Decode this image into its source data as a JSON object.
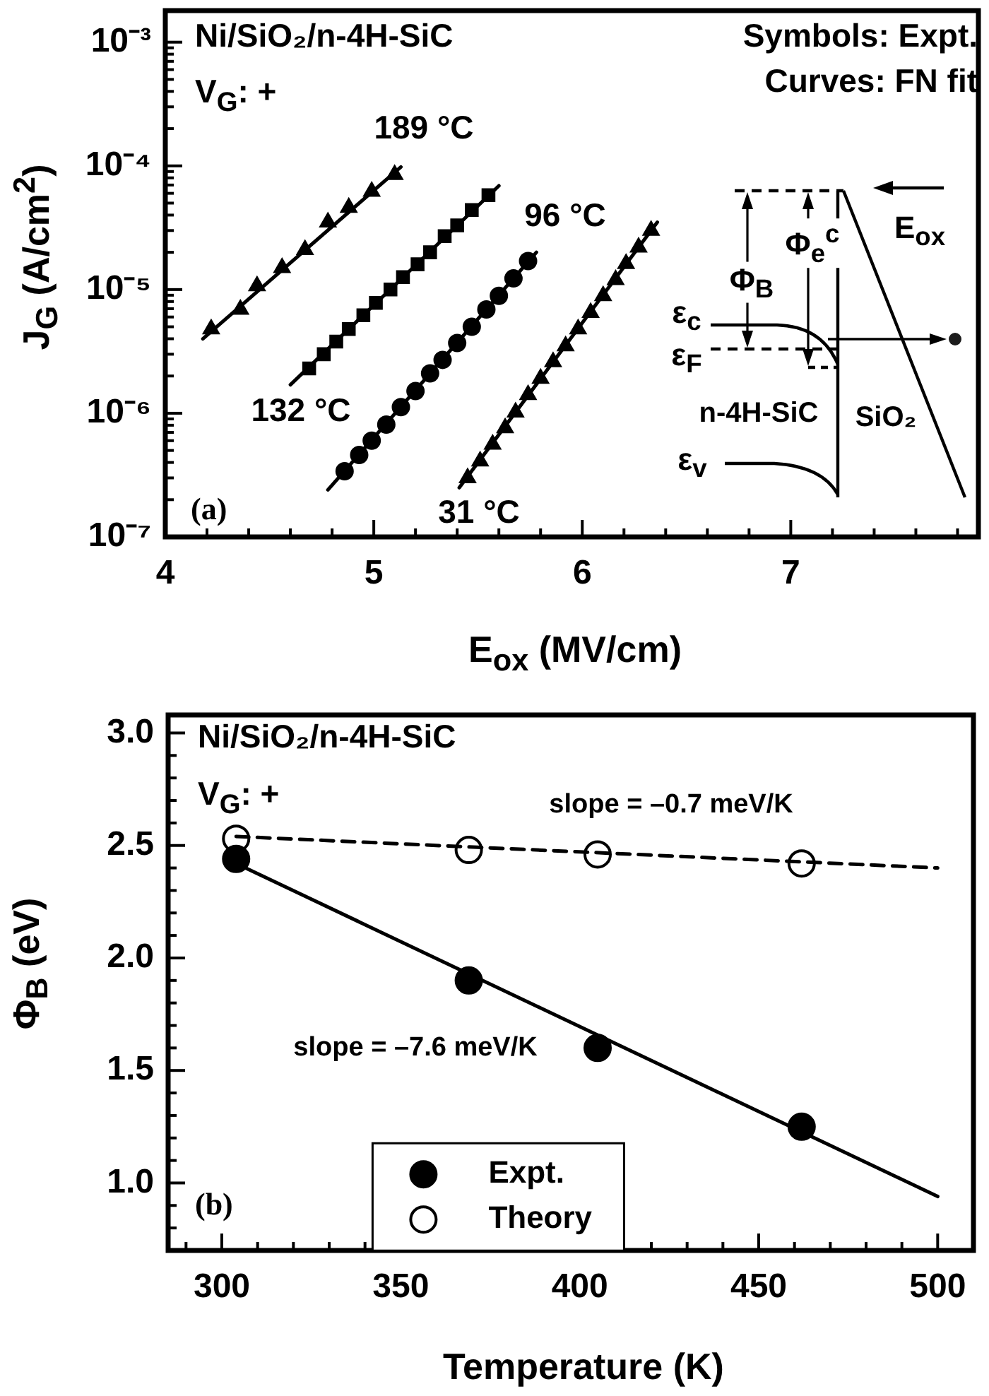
{
  "chart_data": [
    {
      "type": "scatter",
      "xlabel": "E$_{ox}$  (MV/cm)",
      "ylabel": "J$_{G}$ (A/cm$^{2}$)",
      "log": "y",
      "grid": false,
      "legend": false,
      "xlim": [
        4,
        7.9
      ],
      "xticks": [
        4,
        {
          "value": 4.2,
          "label": null
        },
        {
          "value": 4.4,
          "label": null
        },
        {
          "value": 4.6,
          "label": null
        },
        {
          "value": 4.8,
          "label": null
        },
        5,
        {
          "value": 5.2,
          "label": null
        },
        {
          "value": 5.4,
          "label": null
        },
        {
          "value": 5.6,
          "label": null
        },
        {
          "value": 5.8,
          "label": null
        },
        6,
        {
          "value": 6.2,
          "label": null
        },
        {
          "value": 6.4,
          "label": null
        },
        {
          "value": 6.6,
          "label": null
        },
        {
          "value": 6.8,
          "label": null
        },
        7,
        {
          "value": 7.2,
          "label": null
        },
        {
          "value": 7.4,
          "label": null
        },
        {
          "value": 7.6,
          "label": null
        },
        {
          "value": 7.8,
          "label": null
        }
      ],
      "ylim": [
        1e-07,
        0.0018
      ],
      "yticks": [
        {
          "value": 1e-07,
          "label": "10⁻⁷"
        },
        {
          "value": 2e-07,
          "label": null
        },
        {
          "value": 3e-07,
          "label": null
        },
        {
          "value": 4e-07,
          "label": null
        },
        {
          "value": 5e-07,
          "label": null
        },
        {
          "value": 6e-07,
          "label": null
        },
        {
          "value": 7e-07,
          "label": null
        },
        {
          "value": 8e-07,
          "label": null
        },
        {
          "value": 9e-07,
          "label": null
        },
        {
          "value": 1e-06,
          "label": "10⁻⁶"
        },
        {
          "value": 2e-06,
          "label": null
        },
        {
          "value": 3e-06,
          "label": null
        },
        {
          "value": 4e-06,
          "label": null
        },
        {
          "value": 5e-06,
          "label": null
        },
        {
          "value": 6e-06,
          "label": null
        },
        {
          "value": 7e-06,
          "label": null
        },
        {
          "value": 8e-06,
          "label": null
        },
        {
          "value": 9e-06,
          "label": null
        },
        {
          "value": 1e-05,
          "label": "10⁻⁵"
        },
        {
          "value": 2e-05,
          "label": null
        },
        {
          "value": 3e-05,
          "label": null
        },
        {
          "value": 4e-05,
          "label": null
        },
        {
          "value": 5e-05,
          "label": null
        },
        {
          "value": 6e-05,
          "label": null
        },
        {
          "value": 7e-05,
          "label": null
        },
        {
          "value": 8e-05,
          "label": null
        },
        {
          "value": 9e-05,
          "label": null
        },
        {
          "value": 0.0001,
          "label": "10⁻⁴"
        },
        {
          "value": 0.0002,
          "label": null
        },
        {
          "value": 0.0003,
          "label": null
        },
        {
          "value": 0.0004,
          "label": null
        },
        {
          "value": 0.0005,
          "label": null
        },
        {
          "value": 0.0006,
          "label": null
        },
        {
          "value": 0.0007,
          "label": null
        },
        {
          "value": 0.0008,
          "label": null
        },
        {
          "value": 0.0009,
          "label": null
        },
        {
          "value": 0.001,
          "label": "10⁻³"
        }
      ],
      "series": [
        {
          "marker": "triangle",
          "color": "#000000",
          "x": [
            4.22,
            4.36,
            4.44,
            4.56,
            4.67,
            4.78,
            4.88,
            4.99,
            5.1
          ],
          "values": [
            4.8e-06,
            6.9e-06,
            1.07e-05,
            1.5e-05,
            2.1e-05,
            3.5e-05,
            4.6e-05,
            6.2e-05,
            8.5e-05
          ]
        },
        {
          "type": "line",
          "marker": "none",
          "line_style": "solid",
          "color": "#000000",
          "x": [
            4.18,
            5.13
          ],
          "values": [
            4e-06,
            9.8e-05
          ]
        },
        {
          "marker": "square",
          "color": "#000000",
          "x": [
            4.69,
            4.76,
            4.82,
            4.88,
            4.95,
            5.01,
            5.08,
            5.14,
            5.21,
            5.27,
            5.34,
            5.4,
            5.47,
            5.55
          ],
          "values": [
            2.3e-06,
            3e-06,
            3.8e-06,
            4.8e-06,
            6.2e-06,
            7.8e-06,
            1e-05,
            1.26e-05,
            1.6e-05,
            2e-05,
            2.7e-05,
            3.3e-05,
            4.4e-05,
            5.8e-05
          ]
        },
        {
          "type": "line",
          "marker": "none",
          "line_style": "solid",
          "color": "#000000",
          "x": [
            4.6,
            5.6
          ],
          "values": [
            1.7e-06,
            6.9e-05
          ]
        },
        {
          "marker": "circle",
          "color": "#000000",
          "x": [
            4.86,
            4.93,
            4.99,
            5.06,
            5.13,
            5.2,
            5.27,
            5.33,
            5.4,
            5.47,
            5.54,
            5.6,
            5.67,
            5.74
          ],
          "values": [
            3.4e-07,
            4.6e-07,
            6e-07,
            8.1e-07,
            1.12e-06,
            1.51e-06,
            2.1e-06,
            2.7e-06,
            3.7e-06,
            5e-06,
            6.9e-06,
            8.9e-06,
            1.23e-05,
            1.7e-05
          ]
        },
        {
          "type": "line",
          "marker": "none",
          "line_style": "solid",
          "color": "#000000",
          "x": [
            4.78,
            5.78
          ],
          "values": [
            2.4e-07,
            2e-05
          ]
        },
        {
          "marker": "triangle",
          "color": "#000000",
          "x": [
            5.45,
            5.51,
            5.57,
            5.63,
            5.68,
            5.74,
            5.8,
            5.86,
            5.92,
            5.98,
            6.04,
            6.1,
            6.16,
            6.21,
            6.27,
            6.33
          ],
          "values": [
            3e-07,
            4.1e-07,
            5.6e-07,
            7.6e-07,
            1.02e-06,
            1.41e-06,
            1.91e-06,
            2.6e-06,
            3.5e-06,
            4.8e-06,
            6.5e-06,
            8.9e-06,
            1.2e-05,
            1.62e-05,
            2.2e-05,
            3e-05
          ]
        },
        {
          "type": "line",
          "marker": "none",
          "line_style": "solid",
          "color": "#000000",
          "x": [
            5.41,
            6.36
          ],
          "values": [
            2.5e-07,
            3.5e-05
          ]
        }
      ],
      "annotations": [
        "Ni/SiO₂/n-4H-SiC",
        "V$_{G}$: +",
        "Symbols: Expt.",
        "Curves: FN fit",
        "(a)",
        "E$_{ox}$",
        "Φ$_{B}$",
        "Φ$_{e}$$^{c}$",
        "ε$_{c}$",
        "ε$_{F}$",
        "n-4H-SiC",
        "SiO₂",
        "ε$_{v}$",
        "189 °C",
        "132 °C",
        "96 °C",
        "31 °C"
      ]
    },
    {
      "type": "scatter",
      "xlabel": "Temperature  (K)",
      "ylabel": "Φ$_{B}$  (eV)",
      "grid": false,
      "legend": "bottom",
      "xlim": [
        285,
        510
      ],
      "xticks": [
        {
          "value": 290,
          "label": null
        },
        300,
        {
          "value": 310,
          "label": null
        },
        {
          "value": 320,
          "label": null
        },
        {
          "value": 330,
          "label": null
        },
        {
          "value": 340,
          "label": null
        },
        350,
        {
          "value": 360,
          "label": null
        },
        {
          "value": 370,
          "label": null
        },
        {
          "value": 380,
          "label": null
        },
        {
          "value": 390,
          "label": null
        },
        400,
        {
          "value": 410,
          "label": null
        },
        {
          "value": 420,
          "label": null
        },
        {
          "value": 430,
          "label": null
        },
        {
          "value": 440,
          "label": null
        },
        450,
        {
          "value": 460,
          "label": null
        },
        {
          "value": 470,
          "label": null
        },
        {
          "value": 480,
          "label": null
        },
        {
          "value": 490,
          "label": null
        },
        500
      ],
      "ylim": [
        0.7,
        3.08
      ],
      "yticks": [
        {
          "value": 0.8,
          "label": null
        },
        {
          "value": 0.9,
          "label": null
        },
        {
          "value": 1,
          "label": "1.0"
        },
        {
          "value": 1.1,
          "label": null
        },
        {
          "value": 1.2,
          "label": null
        },
        {
          "value": 1.3,
          "label": null
        },
        {
          "value": 1.4,
          "label": null
        },
        1.5,
        {
          "value": 1.6,
          "label": null
        },
        {
          "value": 1.7,
          "label": null
        },
        {
          "value": 1.8,
          "label": null
        },
        {
          "value": 1.9,
          "label": null
        },
        {
          "value": 2,
          "label": "2.0"
        },
        {
          "value": 2.1,
          "label": null
        },
        {
          "value": 2.2,
          "label": null
        },
        {
          "value": 2.3,
          "label": null
        },
        {
          "value": 2.4,
          "label": null
        },
        2.5,
        {
          "value": 2.6,
          "label": null
        },
        {
          "value": 2.7,
          "label": null
        },
        {
          "value": 2.8,
          "label": null
        },
        {
          "value": 2.9,
          "label": null
        },
        {
          "value": 3,
          "label": "3.0"
        }
      ],
      "series": [
        {
          "type": "line",
          "marker": "none",
          "line_style": "solid",
          "color": "#000000",
          "x": [
            304,
            500
          ],
          "values": [
            2.42,
            0.94
          ]
        },
        {
          "type": "line",
          "marker": "none",
          "line_style": "dashed",
          "color": "#000000",
          "x": [
            304,
            500
          ],
          "values": [
            2.54,
            2.4
          ]
        },
        {
          "name": "Expt.",
          "marker": "circle",
          "color": "#000000",
          "x": [
            304,
            369,
            405,
            462
          ],
          "values": [
            2.44,
            1.9,
            1.6,
            1.25
          ]
        },
        {
          "name": "Theory",
          "marker": "circle",
          "color": "#ffffff",
          "x": [
            304,
            369,
            405,
            462
          ],
          "values": [
            2.53,
            2.48,
            2.46,
            2.42
          ]
        }
      ],
      "annotations": [
        "Ni/SiO₂/n-4H-SiC",
        "V$_{G}$: +",
        "(b)",
        "slope = –0.7 meV/K",
        "slope = –7.6 meV/K"
      ]
    }
  ]
}
